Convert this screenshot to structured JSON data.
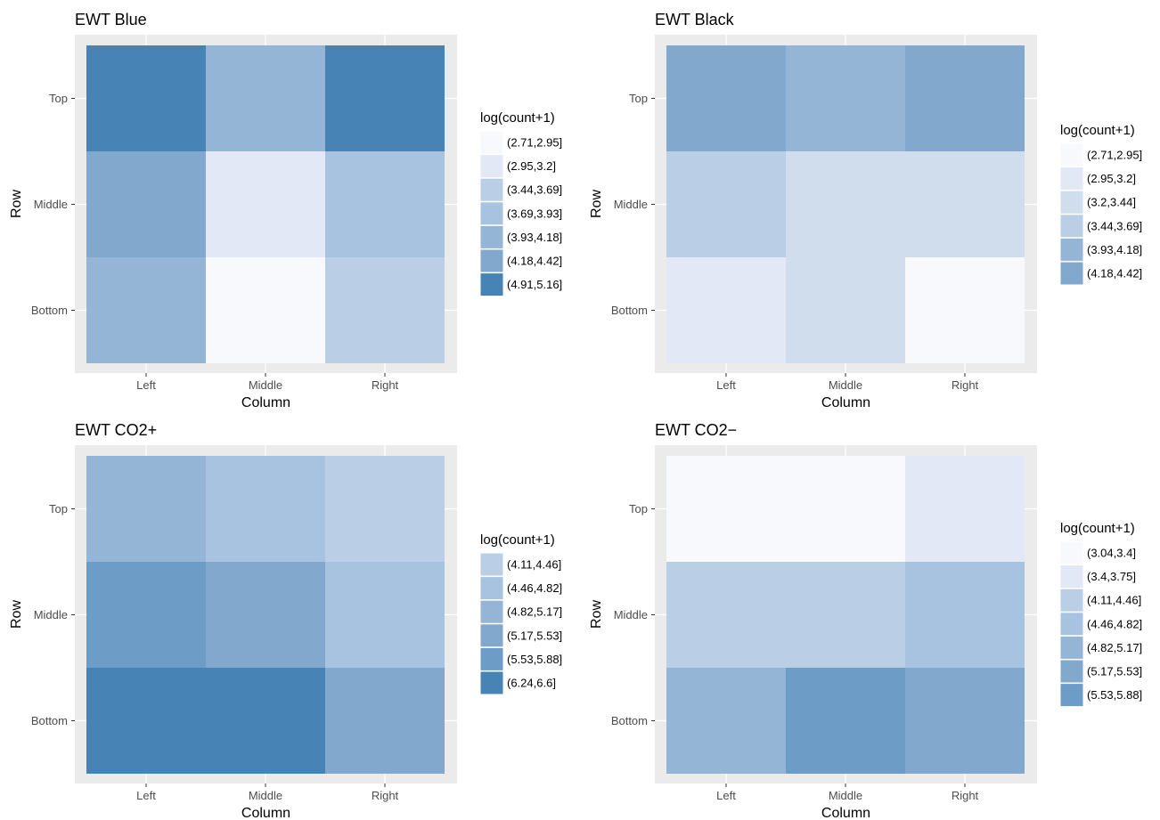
{
  "chart_data": [
    {
      "type": "heatmap",
      "title": "EWT Blue",
      "xlabel": "Column",
      "ylabel": "Row",
      "x_categories": [
        "Left",
        "Middle",
        "Right"
      ],
      "y_categories": [
        "Bottom",
        "Middle",
        "Top"
      ],
      "legend_title": "log(count+1)",
      "legend": [
        {
          "label": "(2.71,2.95]",
          "color": "#f7f9fd"
        },
        {
          "label": "(2.95,3.2]",
          "color": "#e2e8f5"
        },
        {
          "label": "(3.44,3.69]",
          "color": "#bacfe6"
        },
        {
          "label": "(3.69,3.93]",
          "color": "#a8c3df"
        },
        {
          "label": "(3.93,4.18]",
          "color": "#95b5d6"
        },
        {
          "label": "(4.18,4.42]",
          "color": "#82a8cd"
        },
        {
          "label": "(4.91,5.16]",
          "color": "#4783b5"
        }
      ],
      "cells": [
        {
          "row": "Top",
          "column": "Left",
          "bin": "(4.91,5.16]"
        },
        {
          "row": "Top",
          "column": "Middle",
          "bin": "(3.93,4.18]"
        },
        {
          "row": "Top",
          "column": "Right",
          "bin": "(4.91,5.16]"
        },
        {
          "row": "Middle",
          "column": "Left",
          "bin": "(4.18,4.42]"
        },
        {
          "row": "Middle",
          "column": "Middle",
          "bin": "(2.95,3.2]"
        },
        {
          "row": "Middle",
          "column": "Right",
          "bin": "(3.69,3.93]"
        },
        {
          "row": "Bottom",
          "column": "Left",
          "bin": "(3.93,4.18]"
        },
        {
          "row": "Bottom",
          "column": "Middle",
          "bin": "(2.71,2.95]"
        },
        {
          "row": "Bottom",
          "column": "Right",
          "bin": "(3.44,3.69]"
        }
      ],
      "grid": true,
      "legend_position": "right"
    },
    {
      "type": "heatmap",
      "title": "EWT Black",
      "xlabel": "Column",
      "ylabel": "Row",
      "x_categories": [
        "Left",
        "Middle",
        "Right"
      ],
      "y_categories": [
        "Bottom",
        "Middle",
        "Top"
      ],
      "legend_title": "log(count+1)",
      "legend": [
        {
          "label": "(2.71,2.95]",
          "color": "#f7f9fd"
        },
        {
          "label": "(2.95,3.2]",
          "color": "#e2e8f5"
        },
        {
          "label": "(3.2,3.44]",
          "color": "#d0dded"
        },
        {
          "label": "(3.44,3.69]",
          "color": "#bacfe6"
        },
        {
          "label": "(3.93,4.18]",
          "color": "#95b5d6"
        },
        {
          "label": "(4.18,4.42]",
          "color": "#82a8cd"
        }
      ],
      "cells": [
        {
          "row": "Top",
          "column": "Left",
          "bin": "(4.18,4.42]"
        },
        {
          "row": "Top",
          "column": "Middle",
          "bin": "(3.93,4.18]"
        },
        {
          "row": "Top",
          "column": "Right",
          "bin": "(4.18,4.42]"
        },
        {
          "row": "Middle",
          "column": "Left",
          "bin": "(3.44,3.69]"
        },
        {
          "row": "Middle",
          "column": "Middle",
          "bin": "(3.2,3.44]"
        },
        {
          "row": "Middle",
          "column": "Right",
          "bin": "(3.2,3.44]"
        },
        {
          "row": "Bottom",
          "column": "Left",
          "bin": "(2.95,3.2]"
        },
        {
          "row": "Bottom",
          "column": "Middle",
          "bin": "(3.2,3.44]"
        },
        {
          "row": "Bottom",
          "column": "Right",
          "bin": "(2.71,2.95]"
        }
      ],
      "grid": true,
      "legend_position": "right"
    },
    {
      "type": "heatmap",
      "title": "EWT CO2+",
      "xlabel": "Column",
      "ylabel": "Row",
      "x_categories": [
        "Left",
        "Middle",
        "Right"
      ],
      "y_categories": [
        "Bottom",
        "Middle",
        "Top"
      ],
      "legend_title": "log(count+1)",
      "legend": [
        {
          "label": "(4.11,4.46]",
          "color": "#bacfe6"
        },
        {
          "label": "(4.46,4.82]",
          "color": "#a8c3df"
        },
        {
          "label": "(4.82,5.17]",
          "color": "#95b5d6"
        },
        {
          "label": "(5.17,5.53]",
          "color": "#82a8cd"
        },
        {
          "label": "(5.53,5.88]",
          "color": "#6d9dc6"
        },
        {
          "label": "(6.24,6.6]",
          "color": "#4783b5"
        }
      ],
      "cells": [
        {
          "row": "Top",
          "column": "Left",
          "bin": "(4.82,5.17]"
        },
        {
          "row": "Top",
          "column": "Middle",
          "bin": "(4.46,4.82]"
        },
        {
          "row": "Top",
          "column": "Right",
          "bin": "(4.11,4.46]"
        },
        {
          "row": "Middle",
          "column": "Left",
          "bin": "(5.53,5.88]"
        },
        {
          "row": "Middle",
          "column": "Middle",
          "bin": "(5.17,5.53]"
        },
        {
          "row": "Middle",
          "column": "Right",
          "bin": "(4.46,4.82]"
        },
        {
          "row": "Bottom",
          "column": "Left",
          "bin": "(6.24,6.6]"
        },
        {
          "row": "Bottom",
          "column": "Middle",
          "bin": "(6.24,6.6]"
        },
        {
          "row": "Bottom",
          "column": "Right",
          "bin": "(5.17,5.53]"
        }
      ],
      "grid": true,
      "legend_position": "right"
    },
    {
      "type": "heatmap",
      "title": "EWT CO2−",
      "xlabel": "Column",
      "ylabel": "Row",
      "x_categories": [
        "Left",
        "Middle",
        "Right"
      ],
      "y_categories": [
        "Bottom",
        "Middle",
        "Top"
      ],
      "legend_title": "log(count+1)",
      "legend": [
        {
          "label": "(3.04,3.4]",
          "color": "#f7f9fd"
        },
        {
          "label": "(3.4,3.75]",
          "color": "#e2e8f5"
        },
        {
          "label": "(4.11,4.46]",
          "color": "#bacfe6"
        },
        {
          "label": "(4.46,4.82]",
          "color": "#a8c3df"
        },
        {
          "label": "(4.82,5.17]",
          "color": "#95b5d6"
        },
        {
          "label": "(5.17,5.53]",
          "color": "#82a8cd"
        },
        {
          "label": "(5.53,5.88]",
          "color": "#6d9dc6"
        }
      ],
      "cells": [
        {
          "row": "Top",
          "column": "Left",
          "bin": "(3.04,3.4]"
        },
        {
          "row": "Top",
          "column": "Middle",
          "bin": "(3.04,3.4]"
        },
        {
          "row": "Top",
          "column": "Right",
          "bin": "(3.4,3.75]"
        },
        {
          "row": "Middle",
          "column": "Left",
          "bin": "(4.11,4.46]"
        },
        {
          "row": "Middle",
          "column": "Middle",
          "bin": "(4.11,4.46]"
        },
        {
          "row": "Middle",
          "column": "Right",
          "bin": "(4.46,4.82]"
        },
        {
          "row": "Bottom",
          "column": "Left",
          "bin": "(4.82,5.17]"
        },
        {
          "row": "Bottom",
          "column": "Middle",
          "bin": "(5.53,5.88]"
        },
        {
          "row": "Bottom",
          "column": "Right",
          "bin": "(5.17,5.53]"
        }
      ],
      "grid": true,
      "legend_position": "right"
    }
  ]
}
